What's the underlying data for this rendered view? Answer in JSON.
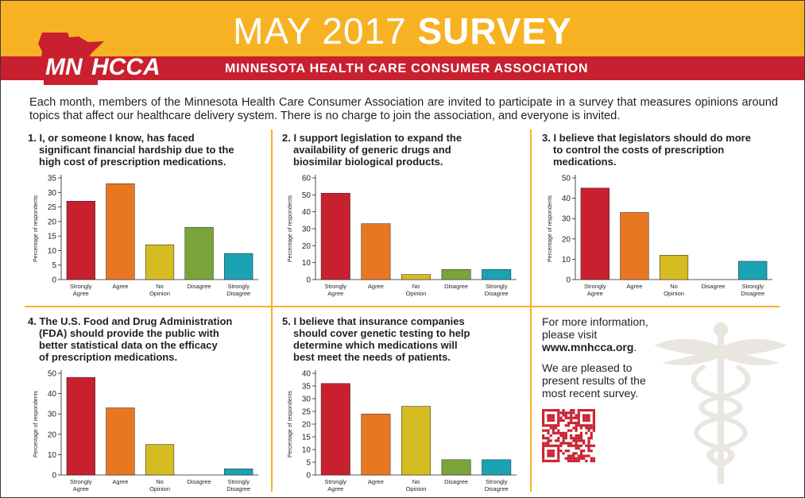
{
  "header": {
    "title_light": "MAY 2017 ",
    "title_bold": "SURVEY",
    "org_name": "MINNESOTA HEALTH CARE CONSUMER ASSOCIATION",
    "logo_text_left": "MN",
    "logo_text_right": "HCCA",
    "colors": {
      "gold": "#f7b224",
      "red": "#c8202f"
    }
  },
  "intro": "Each month, members of the Minnesota Health Care Consumer Association are invited to participate in a survey that measures opinions around topics that affect our healthcare delivery system. There is no charge to join the association, and everyone is invited.",
  "info": {
    "line1": "For more information,",
    "line2": "please visit",
    "url": "www.mnhcca.org",
    "url_suffix": ".",
    "line3": "We are pleased to",
    "line4": "present results of the",
    "line5": "most recent survey."
  },
  "chart_data": [
    {
      "type": "bar",
      "title_lines": [
        "1. I, or someone I know, has faced",
        "significant financial hardship due to the",
        "high cost of prescription medications."
      ],
      "ylabel": "Percentage of respondents",
      "ylim": [
        0,
        35
      ],
      "yticks": [
        0,
        5,
        10,
        15,
        20,
        25,
        30,
        35
      ],
      "categories": [
        [
          "Strongly",
          "Agree"
        ],
        [
          "Agree"
        ],
        [
          "No",
          "Opinion"
        ],
        [
          "Disagree"
        ],
        [
          "Strongly",
          "Disagree"
        ]
      ],
      "values": [
        27,
        33,
        12,
        18,
        9
      ],
      "colors": [
        "#c8202f",
        "#e87722",
        "#d4bc22",
        "#7aa43a",
        "#1aa3b3"
      ]
    },
    {
      "type": "bar",
      "title_lines": [
        "2. I support legislation to expand the",
        "availability of generic drugs and",
        "biosimilar biological products."
      ],
      "ylabel": "Percentage of respondents",
      "ylim": [
        0,
        60
      ],
      "yticks": [
        0,
        10,
        20,
        30,
        40,
        50,
        60
      ],
      "categories": [
        [
          "Strongly",
          "Agree"
        ],
        [
          "Agree"
        ],
        [
          "No",
          "Opinion"
        ],
        [
          "Disagree"
        ],
        [
          "Strongly",
          "Disagree"
        ]
      ],
      "values": [
        51,
        33,
        3,
        6,
        6
      ],
      "colors": [
        "#c8202f",
        "#e87722",
        "#d4bc22",
        "#7aa43a",
        "#1aa3b3"
      ]
    },
    {
      "type": "bar",
      "title_lines": [
        "3. I believe that legislators should do more",
        "to control the costs of prescription",
        "medications."
      ],
      "ylabel": "Percentage of respondents",
      "ylim": [
        0,
        50
      ],
      "yticks": [
        0,
        10,
        20,
        30,
        40,
        50
      ],
      "categories": [
        [
          "Strongly",
          "Agree"
        ],
        [
          "Agree"
        ],
        [
          "No",
          "Opinion"
        ],
        [
          "Disagree"
        ],
        [
          "Strongly",
          "Disagree"
        ]
      ],
      "values": [
        45,
        33,
        12,
        0,
        9
      ],
      "colors": [
        "#c8202f",
        "#e87722",
        "#d4bc22",
        "#7aa43a",
        "#1aa3b3"
      ]
    },
    {
      "type": "bar",
      "title_lines": [
        "4. The U.S. Food and Drug Administration",
        "(FDA) should provide the public with",
        "better statistical data on the efficacy",
        "of prescription medications."
      ],
      "ylabel": "Percentage of respondents",
      "ylim": [
        0,
        50
      ],
      "yticks": [
        0,
        10,
        20,
        30,
        40,
        50
      ],
      "categories": [
        [
          "Strongly",
          "Agree"
        ],
        [
          "Agree"
        ],
        [
          "No",
          "Opinion"
        ],
        [
          "Disagree"
        ],
        [
          "Strongly",
          "Disagree"
        ]
      ],
      "values": [
        48,
        33,
        15,
        0,
        3
      ],
      "colors": [
        "#c8202f",
        "#e87722",
        "#d4bc22",
        "#7aa43a",
        "#1aa3b3"
      ]
    },
    {
      "type": "bar",
      "title_lines": [
        "5. I believe that insurance companies",
        "should cover genetic testing to help",
        "determine which medications will",
        "best meet the needs of patients."
      ],
      "ylabel": "Percentage of respondents",
      "ylim": [
        0,
        40
      ],
      "yticks": [
        0,
        5,
        10,
        15,
        20,
        25,
        30,
        35,
        40
      ],
      "categories": [
        [
          "Strongly",
          "Agree"
        ],
        [
          "Agree"
        ],
        [
          "No",
          "Opinion"
        ],
        [
          "Disagree"
        ],
        [
          "Strongly",
          "Disagree"
        ]
      ],
      "values": [
        36,
        24,
        27,
        6,
        6
      ],
      "colors": [
        "#c8202f",
        "#e87722",
        "#d4bc22",
        "#7aa43a",
        "#1aa3b3"
      ]
    }
  ]
}
